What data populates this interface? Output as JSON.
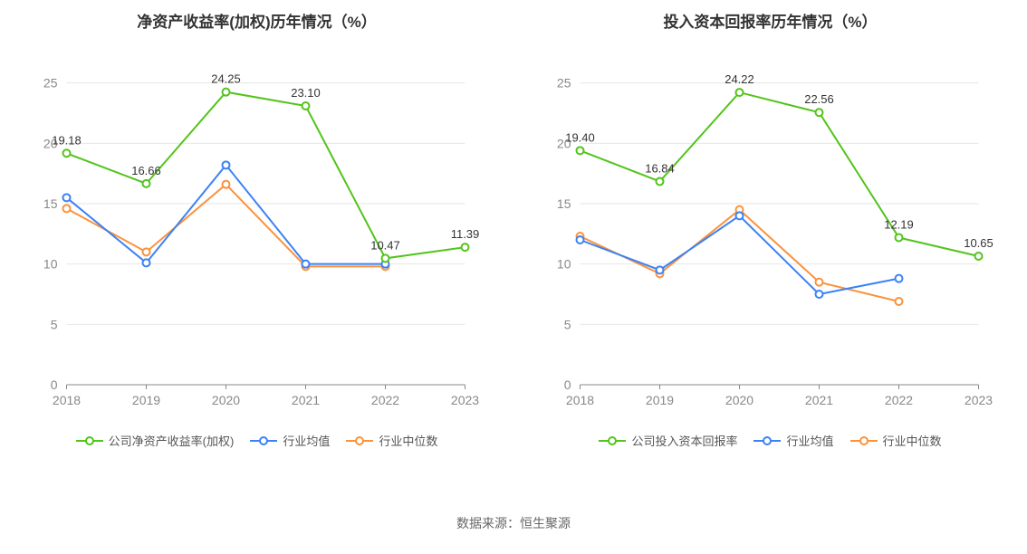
{
  "source_text": "数据来源：恒生聚源",
  "chart_left": {
    "title": "净资产收益率(加权)历年情况（%）",
    "type": "line",
    "x_labels": [
      "2018",
      "2019",
      "2020",
      "2021",
      "2022",
      "2023"
    ],
    "y_ticks": [
      0,
      5,
      10,
      15,
      20,
      25
    ],
    "ylim": [
      0,
      27
    ],
    "grid_color": "#e6e6e6",
    "axis_color": "#888888",
    "tick_fontsize": 14,
    "title_fontsize": 17,
    "label_fontsize": 13,
    "background_color": "#ffffff",
    "marker_radius": 4,
    "line_width": 2,
    "series": [
      {
        "name": "公司净资产收益率(加权)",
        "color": "#52c41a",
        "values": [
          19.18,
          16.66,
          24.25,
          23.1,
          10.47,
          11.39
        ],
        "show_labels": true
      },
      {
        "name": "行业均值",
        "color": "#3b82f6",
        "values": [
          15.5,
          10.1,
          18.2,
          10.0,
          10.0,
          null
        ],
        "show_labels": false
      },
      {
        "name": "行业中位数",
        "color": "#fb923c",
        "values": [
          14.6,
          11.0,
          16.6,
          9.8,
          9.8,
          null
        ],
        "show_labels": false
      }
    ],
    "legend_labels": [
      "公司净资产收益率(加权)",
      "行业均值",
      "行业中位数"
    ]
  },
  "chart_right": {
    "title": "投入资本回报率历年情况（%）",
    "type": "line",
    "x_labels": [
      "2018",
      "2019",
      "2020",
      "2021",
      "2022",
      "2023"
    ],
    "y_ticks": [
      0,
      5,
      10,
      15,
      20,
      25
    ],
    "ylim": [
      0,
      27
    ],
    "grid_color": "#e6e6e6",
    "axis_color": "#888888",
    "tick_fontsize": 14,
    "title_fontsize": 17,
    "label_fontsize": 13,
    "background_color": "#ffffff",
    "marker_radius": 4,
    "line_width": 2,
    "series": [
      {
        "name": "公司投入资本回报率",
        "color": "#52c41a",
        "values": [
          19.4,
          16.84,
          24.22,
          22.56,
          12.19,
          10.65
        ],
        "show_labels": true
      },
      {
        "name": "行业均值",
        "color": "#3b82f6",
        "values": [
          12.0,
          9.5,
          14.0,
          7.5,
          8.8,
          null
        ],
        "show_labels": false
      },
      {
        "name": "行业中位数",
        "color": "#fb923c",
        "values": [
          12.3,
          9.2,
          14.5,
          8.5,
          6.9,
          null
        ],
        "show_labels": false
      }
    ],
    "legend_labels": [
      "公司投入资本回报率",
      "行业均值",
      "行业中位数"
    ]
  }
}
